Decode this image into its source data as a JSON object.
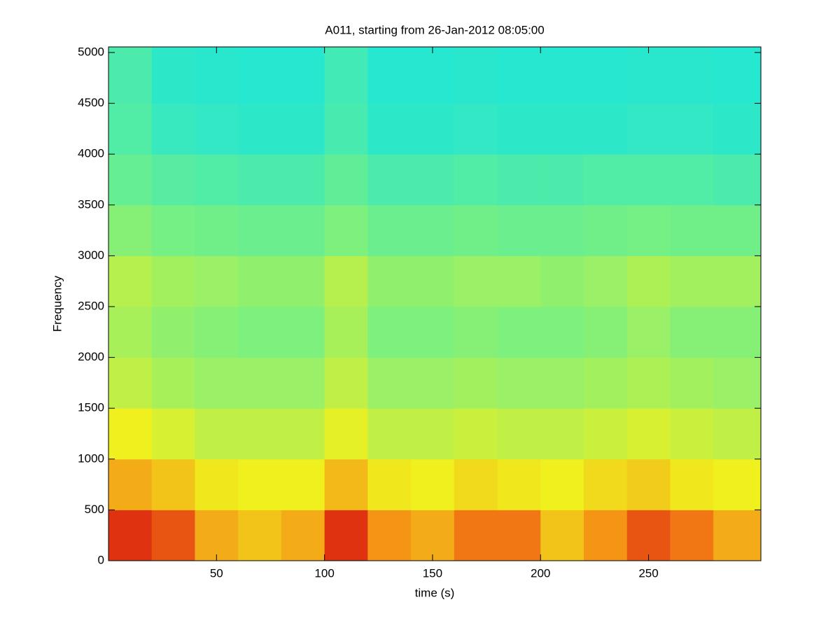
{
  "chart_data": {
    "type": "spectrogram",
    "title": "A011, starting from 26-Jan-2012 08:05:00",
    "x_label": "time (s)",
    "y_label": "Frequency",
    "xlim": [
      0,
      302
    ],
    "ylim": [
      0,
      5055
    ],
    "xticks": [
      50,
      100,
      150,
      200,
      250
    ],
    "yticks": [
      0,
      500,
      1000,
      1500,
      2000,
      2500,
      3000,
      3500,
      4000,
      4500,
      5000
    ],
    "colormap": "jet",
    "time_bins": [
      0,
      20,
      40,
      60,
      80,
      100,
      120,
      140,
      160,
      180,
      200,
      220,
      240,
      260,
      280,
      302
    ],
    "freq_bins": [
      0,
      500,
      1000,
      1500,
      2000,
      2500,
      3000,
      3500,
      4000,
      4500,
      5055
    ],
    "levels": [
      [
        0.95,
        0.9,
        0.75,
        0.7,
        0.75,
        0.95,
        0.8,
        0.75,
        0.85,
        0.85,
        0.7,
        0.8,
        0.9,
        0.85,
        0.75
      ],
      [
        0.75,
        0.7,
        0.62,
        0.6,
        0.6,
        0.72,
        0.62,
        0.6,
        0.65,
        0.62,
        0.6,
        0.65,
        0.68,
        0.62,
        0.6
      ],
      [
        0.6,
        0.55,
        0.5,
        0.5,
        0.5,
        0.58,
        0.5,
        0.5,
        0.52,
        0.5,
        0.5,
        0.52,
        0.55,
        0.52,
        0.5
      ],
      [
        0.5,
        0.45,
        0.42,
        0.42,
        0.42,
        0.5,
        0.42,
        0.42,
        0.44,
        0.42,
        0.42,
        0.44,
        0.46,
        0.44,
        0.42
      ],
      [
        0.45,
        0.4,
        0.38,
        0.36,
        0.36,
        0.45,
        0.36,
        0.36,
        0.38,
        0.36,
        0.36,
        0.38,
        0.42,
        0.38,
        0.38
      ],
      [
        0.48,
        0.44,
        0.42,
        0.4,
        0.4,
        0.48,
        0.4,
        0.4,
        0.42,
        0.42,
        0.4,
        0.42,
        0.46,
        0.44,
        0.44
      ],
      [
        0.38,
        0.34,
        0.32,
        0.3,
        0.3,
        0.36,
        0.3,
        0.3,
        0.32,
        0.3,
        0.3,
        0.32,
        0.34,
        0.32,
        0.32
      ],
      [
        0.28,
        0.22,
        0.2,
        0.18,
        0.18,
        0.26,
        0.18,
        0.18,
        0.2,
        0.18,
        0.18,
        0.2,
        0.2,
        0.2,
        0.18
      ],
      [
        0.2,
        0.1,
        0.08,
        0.06,
        0.06,
        0.16,
        0.06,
        0.06,
        0.08,
        0.06,
        0.06,
        0.06,
        0.08,
        0.08,
        0.06
      ],
      [
        0.18,
        0.06,
        0.04,
        0.03,
        0.03,
        0.14,
        0.03,
        0.03,
        0.04,
        0.03,
        0.03,
        0.03,
        0.04,
        0.04,
        0.03
      ]
    ]
  }
}
